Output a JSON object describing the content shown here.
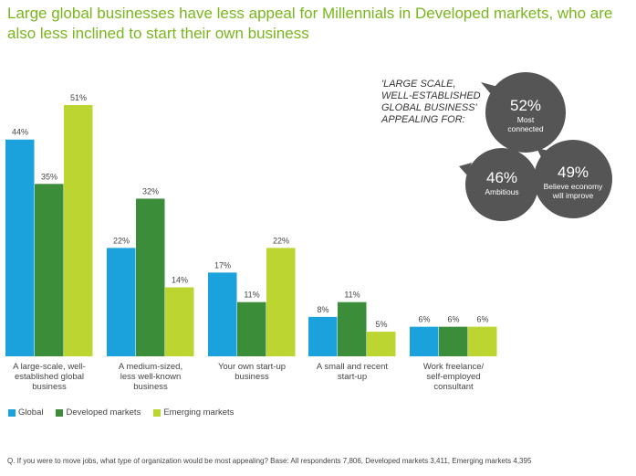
{
  "title": "Large global businesses have less appeal for Millennials in Developed markets, who are also less inclined to start their own business",
  "chart_data": {
    "type": "bar",
    "categories": [
      "A large-scale, well-established global business",
      "A medium-sized, less well-known business",
      "Your own start-up business",
      "A small and recent start-up",
      "Work freelance/ self-employed consultant"
    ],
    "category_lines": [
      [
        "A large-scale, well-",
        "established global",
        "business"
      ],
      [
        "A medium-sized,",
        "less well-known",
        "business"
      ],
      [
        "Your own start-up",
        "business"
      ],
      [
        "A small and recent",
        "start-up"
      ],
      [
        "Work freelance/",
        "self-employed",
        "consultant"
      ]
    ],
    "series": [
      {
        "name": "Global",
        "color": "#1ba1dc",
        "values": [
          44,
          22,
          17,
          8,
          6
        ]
      },
      {
        "name": "Developed markets",
        "color": "#3c8d3a",
        "values": [
          35,
          32,
          11,
          11,
          6
        ]
      },
      {
        "name": "Emerging markets",
        "color": "#bcd531",
        "values": [
          51,
          14,
          22,
          5,
          6
        ]
      }
    ],
    "value_suffix": "%",
    "ylim": [
      0,
      51
    ],
    "grid": false,
    "legend_position": "bottom-left"
  },
  "callout": {
    "label": "'LARGE SCALE,\nWELL-ESTABLISHED\nGLOBAL BUSINESS'\nAPPEALING FOR:",
    "bubble_color": "#555555",
    "bubbles": [
      {
        "value": "52%",
        "text": [
          "Most",
          "connected"
        ]
      },
      {
        "value": "46%",
        "text": [
          "Ambitious"
        ]
      },
      {
        "value": "49%",
        "text": [
          "Believe economy",
          "will improve"
        ]
      }
    ]
  },
  "footnote": "Q. If you were to move jobs, what type of organization would be most appealing? Base: All respondents 7,806, Developed markets 3,411, Emerging markets 4,395"
}
